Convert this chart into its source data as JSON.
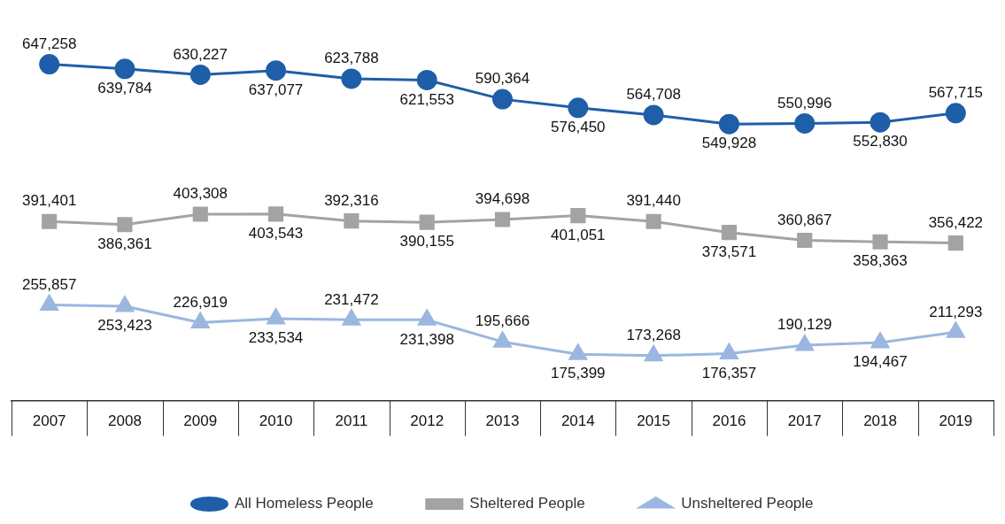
{
  "chart_data": {
    "type": "line",
    "categories": [
      "2007",
      "2008",
      "2009",
      "2010",
      "2011",
      "2012",
      "2013",
      "2014",
      "2015",
      "2016",
      "2017",
      "2018",
      "2019"
    ],
    "series": [
      {
        "name": "All Homeless People",
        "color": "#1f5ea8",
        "marker": "circle",
        "values": [
          647258,
          639784,
          630227,
          637077,
          623788,
          621553,
          590364,
          576450,
          564708,
          549928,
          550996,
          552830,
          567715
        ],
        "value_labels": [
          "647,258",
          "639,784",
          "630,227",
          "637,077",
          "623,788",
          "621,553",
          "590,364",
          "576,450",
          "564,708",
          "549,928",
          "550,996",
          "552,830",
          "567,715"
        ]
      },
      {
        "name": "Sheltered People",
        "color": "#a3a3a3",
        "marker": "square",
        "values": [
          391401,
          386361,
          403308,
          403543,
          392316,
          390155,
          394698,
          401051,
          391440,
          373571,
          360867,
          358363,
          356422
        ],
        "value_labels": [
          "391,401",
          "386,361",
          "403,308",
          "403,543",
          "392,316",
          "390,155",
          "394,698",
          "401,051",
          "391,440",
          "373,571",
          "360,867",
          "358,363",
          "356,422"
        ]
      },
      {
        "name": "Unsheltered People",
        "color": "#9bb7e0",
        "marker": "triangle",
        "values": [
          255857,
          253423,
          226919,
          233534,
          231472,
          231398,
          195666,
          175399,
          173268,
          176357,
          190129,
          194467,
          211293
        ],
        "value_labels": [
          "255,857",
          "253,423",
          "226,919",
          "233,534",
          "231,472",
          "231,398",
          "195,666",
          "175,399",
          "173,268",
          "176,357",
          "190,129",
          "194,467",
          "211,293"
        ]
      }
    ],
    "tick_labels": "x",
    "grid": false,
    "legend": "bottom",
    "line_style": "solid"
  }
}
